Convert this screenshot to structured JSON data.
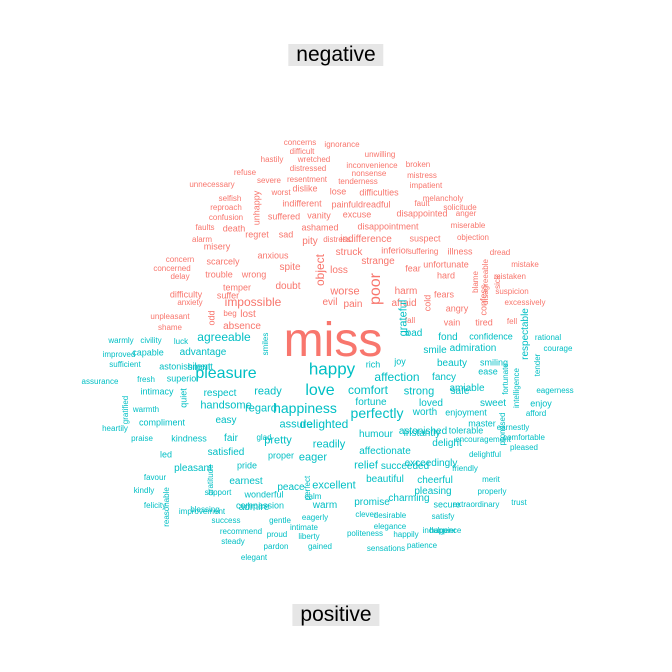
{
  "panel_labels": {
    "top": "negative",
    "bottom": "positive"
  },
  "colors": {
    "negative": "#F8766D",
    "positive": "#00BFC4",
    "label_background": "#E6E6E6"
  },
  "negative_words": [
    "concerns",
    "ignorance",
    "difficult",
    "unwilling",
    "hastily",
    "wretched",
    "inconvenience",
    "broken",
    "distressed",
    "nonsense",
    "mistress",
    "refuse",
    "severe",
    "resentment",
    "tenderness",
    "impatient",
    "unnecessary",
    "dislike",
    "lose",
    "difficulties",
    "melancholy",
    "worst",
    "selfish",
    "reproach",
    "indifferent",
    "painfuldreadful",
    "fault",
    "solicitude",
    "confusion",
    "suffered",
    "vanity",
    "excuse",
    "disappointed",
    "anger",
    "faults",
    "death",
    "ashamed",
    "disappointment",
    "miserable",
    "alarm",
    "sad",
    "distress",
    "indifference",
    "suspect",
    "objection",
    "misery",
    "regret",
    "pity",
    "suffering",
    "illness",
    "concern",
    "anxious",
    "struck",
    "inferior",
    "dread",
    "concerned",
    "scarcely",
    "strange",
    "unfortunate",
    "mistake",
    "delay",
    "trouble",
    "wrong",
    "spite",
    "loss",
    "fear",
    "hard",
    "blame",
    "disagreeable",
    "sick",
    "mistaken",
    "temper",
    "doubt",
    "worse",
    "harm",
    "suspicion",
    "difficulty",
    "fears",
    "confess",
    "anxiety",
    "impossible",
    "evil",
    "pain",
    "afraid",
    "angry",
    "excessively",
    "suffer",
    "odd",
    "unhappy",
    "object",
    "poor",
    "unpleasant",
    "beg",
    "lost",
    "fall",
    "shame",
    "absence",
    "vain",
    "tired",
    "fell",
    "miss",
    "cold"
  ],
  "positive_words": [
    "agreeable",
    "bad",
    "respectable",
    "rational",
    "warmly",
    "civility",
    "luck",
    "smiles",
    "fond",
    "confidence",
    "courage",
    "improved",
    "capable",
    "advantage",
    "smile",
    "admiration",
    "sufficient",
    "astonishment",
    "silent",
    "rich",
    "joy",
    "beauty",
    "smiling",
    "tender",
    "assurance",
    "fresh",
    "superior",
    "pleasure",
    "happy",
    "affection",
    "fancy",
    "ease",
    "fortunate",
    "eagerness",
    "intimacy",
    "quiet",
    "respect",
    "ready",
    "love",
    "comfort",
    "strong",
    "amiable",
    "intelligence",
    "warmth",
    "gratified",
    "safe",
    "enjoy",
    "compliment",
    "handsome",
    "regard",
    "happiness",
    "fortune",
    "loved",
    "sweet",
    "afford",
    "heartily",
    "easy",
    "perfectly",
    "worth",
    "enjoyment",
    "earnestly",
    "glad",
    "instantly",
    "master",
    "grateful",
    "promised",
    "praise",
    "kindness",
    "fair",
    "pretty",
    "assure",
    "delighted",
    "humour",
    "astonished",
    "tolerable",
    "encouragement",
    "comfortable",
    "led",
    "satisfied",
    "proper",
    "readily",
    "affectionate",
    "delight",
    "pleased",
    "pleasant",
    "pride",
    "eager",
    "relief",
    "succeeded",
    "exceedingly",
    "delightful",
    "favour",
    "gratitude",
    "earnest",
    "peace",
    "excellent",
    "beautiful",
    "friendly",
    "kindly",
    "support",
    "perfect",
    "calm",
    "promise",
    "cheerful",
    "merit",
    "felicity",
    "wonderful",
    "warm",
    "charming",
    "pleasing",
    "properly",
    "blessing",
    "admire",
    "extraordinary",
    "secure",
    "trust",
    "reasonable",
    "improvement",
    "compassion",
    "eagerly",
    "clever",
    "desirable",
    "satisfy",
    "success",
    "gentle",
    "intimate",
    "elegance",
    "indulgence",
    "recommend",
    "proud",
    "liberty",
    "politeness",
    "happily",
    "happier",
    "steady",
    "pardon",
    "gained",
    "sensations",
    "patience",
    "elegant"
  ]
}
